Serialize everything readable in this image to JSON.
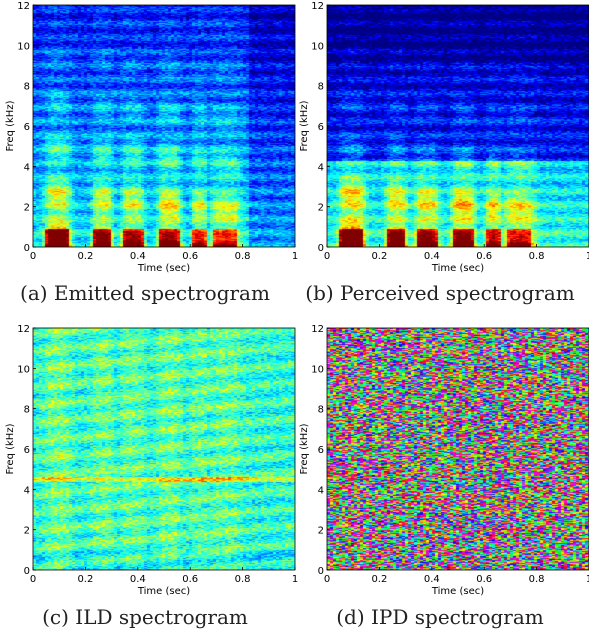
{
  "chart_data": [
    {
      "type": "heatmap",
      "id": "emitted",
      "caption": "(a) Emitted spectrogram",
      "xlabel": "Time (sec)",
      "ylabel": "Freq (kHz)",
      "xlim": [
        0,
        1
      ],
      "ylim": [
        0,
        12
      ],
      "xticks": [
        "0",
        "0.2",
        "0.4",
        "0.6",
        "0.8",
        "1"
      ],
      "yticks": [
        "0",
        "2",
        "4",
        "6",
        "8",
        "10",
        "12"
      ],
      "colormap": "jet",
      "pattern": "speech"
    },
    {
      "type": "heatmap",
      "id": "perceived",
      "caption": "(b) Perceived spectrogram",
      "xlabel": "Time (sec)",
      "ylabel": "Freq (kHz)",
      "xlim": [
        0,
        1
      ],
      "ylim": [
        0,
        12
      ],
      "xticks": [
        "0",
        "0.2",
        "0.4",
        "0.6",
        "0.8",
        "1"
      ],
      "yticks": [
        "0",
        "2",
        "4",
        "6",
        "8",
        "10",
        "12"
      ],
      "colormap": "jet",
      "pattern": "speech-lowpass"
    },
    {
      "type": "heatmap",
      "id": "ild",
      "caption": "(c) ILD spectrogram",
      "xlabel": "Time (sec)",
      "ylabel": "Freq (kHz)",
      "xlim": [
        0,
        1
      ],
      "ylim": [
        0,
        12
      ],
      "xticks": [
        "0",
        "0.2",
        "0.4",
        "0.6",
        "0.8",
        "1"
      ],
      "yticks": [
        "0",
        "2",
        "4",
        "6",
        "8",
        "10",
        "12"
      ],
      "colormap": "jet",
      "pattern": "ild"
    },
    {
      "type": "heatmap",
      "id": "ipd",
      "caption": "(d) IPD spectrogram",
      "xlabel": "Time (sec)",
      "ylabel": "Freq (kHz)",
      "xlim": [
        0,
        1
      ],
      "ylim": [
        0,
        12
      ],
      "xticks": [
        "0",
        "0.2",
        "0.4",
        "0.6",
        "0.8",
        "1"
      ],
      "yticks": [
        "0",
        "2",
        "4",
        "6",
        "8",
        "10",
        "12"
      ],
      "colormap": "hsv",
      "pattern": "ipd"
    }
  ],
  "colors": {
    "jet_low": "#00008f",
    "jet_mid": "#40ffbf",
    "jet_high": "#800000"
  }
}
